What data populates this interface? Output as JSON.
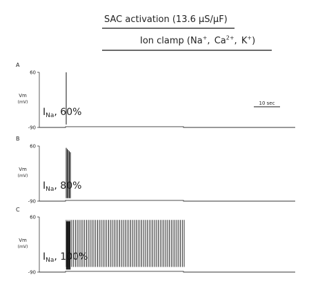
{
  "header": {
    "sac_label": "SAC activation (13.6 μS/μF)",
    "ion_prefix": "Ion clamp (",
    "ions": [
      {
        "base": "Na",
        "charge": "+"
      },
      {
        "base": "Ca",
        "charge": "2+"
      },
      {
        "base": "K",
        "charge": "+"
      }
    ],
    "ion_suffix": ")"
  },
  "chart_data": {
    "type": "line",
    "xlabel": "",
    "ylabel": "Vm (mV)",
    "y_label_lines": [
      "Vm",
      "(mV)"
    ],
    "yticks": [
      60,
      -90
    ],
    "ylim": [
      -90,
      60
    ],
    "scale_bar": "10 sec",
    "scale_bar_seconds": 10,
    "sac_interval_s": [
      10,
      55
    ],
    "panels": [
      {
        "label": "A",
        "current_label": "I",
        "current_sub": "Na",
        "current_value": ", 60%",
        "spike_pattern": "single",
        "spike_count": 1,
        "burst_duration_s": 0,
        "rest_mv": -90,
        "plateau_mv": -88,
        "spike_peak_mv": 60
      },
      {
        "label": "B",
        "current_label": "I",
        "current_sub": "Na",
        "current_value": ", 80%",
        "spike_pattern": "burst",
        "spike_count": 5,
        "burst_duration_s": 1.6,
        "rest_mv": -90,
        "plateau_mv": -88,
        "spike_peak_mv": 55
      },
      {
        "label": "C",
        "current_label": "I",
        "current_sub": "Na",
        "current_value": ", 100%",
        "spike_pattern": "sustained",
        "spike_count": 65,
        "burst_duration_s": 45,
        "rest_mv": -90,
        "plateau_mv": -88,
        "spike_peak_mv": 52
      }
    ]
  }
}
